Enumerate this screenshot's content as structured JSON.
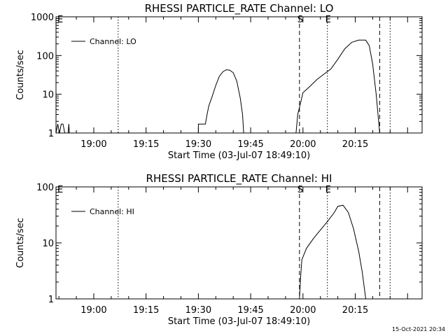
{
  "footer": {
    "timestamp": "15-Oct-2021 20:34"
  },
  "chart_data": [
    {
      "type": "line",
      "title": "RHESSI PARTICLE_RATE Channel: LO",
      "xlabel": "Start Time (03-Jul-07 18:49:10)",
      "ylabel": "Counts/sec",
      "yscale": "log",
      "ylim": [
        1,
        1000
      ],
      "xlim_minutes_after_1849": [
        0,
        105
      ],
      "x_tick_labels": [
        "19:00",
        "19:15",
        "19:30",
        "19:45",
        "20:00",
        "20:15"
      ],
      "y_tick_labels": [
        "1",
        "10",
        "100",
        "1000"
      ],
      "legend": {
        "label": "Channel: LO",
        "position": "top-left"
      },
      "grid": false,
      "markers": [
        {
          "label": "S",
          "time": "19:59",
          "style": "dashed"
        },
        {
          "label": "E",
          "time": "20:07",
          "style": "dotted"
        }
      ],
      "extra_lines": [
        {
          "time": "19:07",
          "style": "dotted"
        },
        {
          "time": "20:22",
          "style": "dashed"
        },
        {
          "time": "20:25",
          "style": "dotted"
        }
      ],
      "corner_label": "E",
      "series": [
        {
          "name": "Channel: LO",
          "points": [
            [
              "18:49:10",
              1
            ],
            [
              "18:49:40",
              1.7
            ],
            [
              "18:50:10",
              1
            ],
            [
              "18:50:40",
              1.7
            ],
            [
              "18:51:10",
              1.7
            ],
            [
              "18:51:40",
              1
            ],
            [
              "18:52:40",
              1
            ],
            [
              "18:52:50",
              1.7
            ],
            [
              "18:53:00",
              1
            ],
            [
              "19:30:00",
              1
            ],
            [
              "19:30:00",
              1.7
            ],
            [
              "19:32:00",
              1.7
            ],
            [
              "19:32:30",
              3
            ],
            [
              "19:33:00",
              5
            ],
            [
              "19:34:00",
              9
            ],
            [
              "19:35:00",
              17
            ],
            [
              "19:36:00",
              29
            ],
            [
              "19:37:00",
              38
            ],
            [
              "19:38:00",
              43
            ],
            [
              "19:39:00",
              42
            ],
            [
              "19:40:00",
              36
            ],
            [
              "19:41:00",
              22
            ],
            [
              "19:42:00",
              8
            ],
            [
              "19:42:40",
              3
            ],
            [
              "19:43:00",
              1
            ],
            [
              "19:58:00",
              1
            ],
            [
              "19:58:30",
              3
            ],
            [
              "19:59:30",
              7
            ],
            [
              "20:00:00",
              11
            ],
            [
              "20:02:00",
              16
            ],
            [
              "20:04:00",
              24
            ],
            [
              "20:06:00",
              33
            ],
            [
              "20:08:00",
              45
            ],
            [
              "20:10:00",
              80
            ],
            [
              "20:12:00",
              150
            ],
            [
              "20:14:00",
              220
            ],
            [
              "20:16:00",
              250
            ],
            [
              "20:18:00",
              250
            ],
            [
              "20:19:00",
              180
            ],
            [
              "20:20:00",
              60
            ],
            [
              "20:21:00",
              10
            ],
            [
              "20:22:00",
              1
            ]
          ]
        }
      ]
    },
    {
      "type": "line",
      "title": "RHESSI PARTICLE_RATE Channel: HI",
      "xlabel": "Start Time (03-Jul-07 18:49:10)",
      "ylabel": "Counts/sec",
      "yscale": "log",
      "ylim": [
        1,
        100
      ],
      "xlim_minutes_after_1849": [
        0,
        105
      ],
      "x_tick_labels": [
        "19:00",
        "19:15",
        "19:30",
        "19:45",
        "20:00",
        "20:15"
      ],
      "y_tick_labels": [
        "1",
        "10",
        "100"
      ],
      "legend": {
        "label": "Channel: HI",
        "position": "top-left"
      },
      "grid": false,
      "markers": [
        {
          "label": "S",
          "time": "19:59",
          "style": "dashed"
        },
        {
          "label": "E",
          "time": "20:07",
          "style": "dotted"
        }
      ],
      "extra_lines": [
        {
          "time": "19:07",
          "style": "dotted"
        },
        {
          "time": "20:22",
          "style": "dashed"
        },
        {
          "time": "20:25",
          "style": "dotted"
        }
      ],
      "corner_label": "E",
      "series": [
        {
          "name": "Channel: HI",
          "points": [
            [
              "19:59:00",
              1
            ],
            [
              "19:59:20",
              2.5
            ],
            [
              "19:59:40",
              5
            ],
            [
              "20:01:00",
              8
            ],
            [
              "20:03:00",
              12
            ],
            [
              "20:05:00",
              17
            ],
            [
              "20:07:00",
              24
            ],
            [
              "20:09:00",
              35
            ],
            [
              "20:10:00",
              45
            ],
            [
              "20:11:30",
              47
            ],
            [
              "20:13:00",
              35
            ],
            [
              "20:14:30",
              18
            ],
            [
              "20:16:00",
              7
            ],
            [
              "20:17:00",
              3
            ],
            [
              "20:18:00",
              1
            ]
          ]
        }
      ]
    }
  ]
}
